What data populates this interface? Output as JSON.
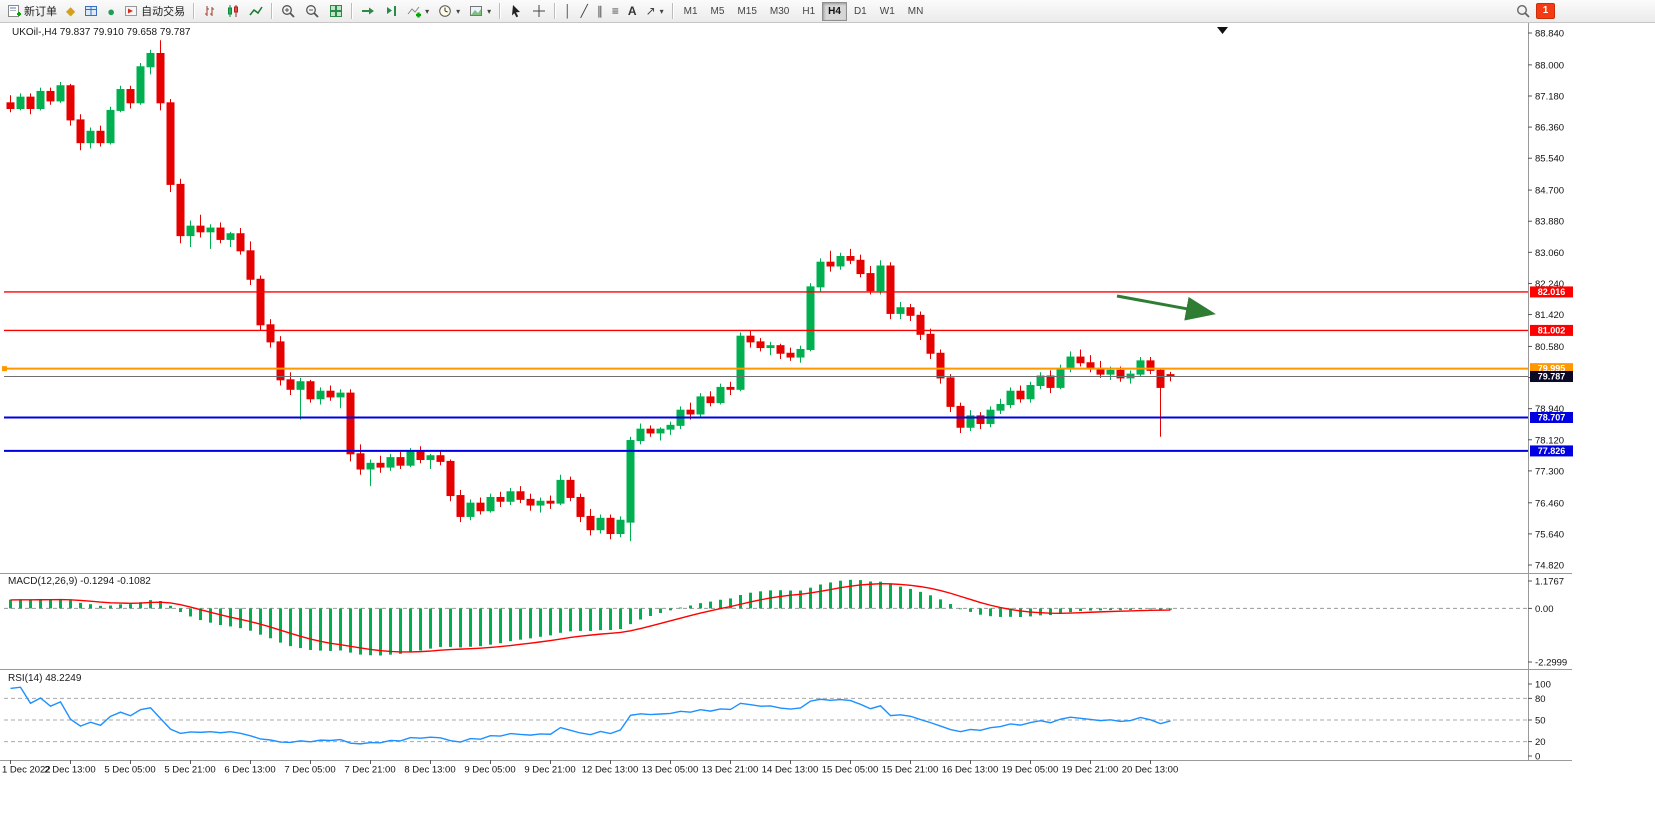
{
  "app": {
    "badge_count": "1"
  },
  "toolbar": {
    "new_order_label": "新订单",
    "auto_trading_label": "自动交易",
    "timeframes": [
      "M1",
      "M5",
      "M15",
      "M30",
      "H1",
      "H4",
      "D1",
      "W1",
      "MN"
    ],
    "active_timeframe": "H4",
    "icon_glyphs": {
      "marketwatch-icon": "◆",
      "navigator-icon": "●",
      "vertical-line-icon": "│",
      "trendline-icon": "╱",
      "channel-icon": "∥",
      "fibonacci-icon": "≡",
      "text-tool-icon": "A",
      "arrows-icon": "↗",
      "dropdown-caret-icon": "▾"
    }
  },
  "chart": {
    "title": "UKOil-,H4 79.837 79.910 79.658 79.787"
  },
  "macd": {
    "label": "MACD(12,26,9) -0.1294 -0.1082",
    "axis_ticks": [
      "1.1767",
      "0.00",
      "-2.2999"
    ]
  },
  "rsi": {
    "label": "RSI(14) 48.2249",
    "axis_ticks": [
      "100",
      "80",
      "50",
      "20",
      "0"
    ],
    "levels": [
      80,
      50,
      20
    ]
  },
  "colors": {
    "bull": "#00b050",
    "bear": "#e60000",
    "macd_hist": "#00b050",
    "macd_signal": "#ff0000",
    "rsi_line": "#1e90ff",
    "bid_line": "#6f6f6f",
    "current_tag_bg": "#0a0a28",
    "arrow": "#2e7d32",
    "axis_text": "#111111",
    "badge_bg": "#f43b12"
  },
  "chart_data": {
    "type": "candlestick",
    "symbol": "UKOil-",
    "timeframe": "H4",
    "y_range": [
      74.82,
      88.84
    ],
    "y_axis_ticks": [
      "88.840",
      "88.000",
      "87.180",
      "86.360",
      "85.540",
      "84.700",
      "83.880",
      "83.060",
      "82.240",
      "81.420",
      "80.580",
      "79.760",
      "78.940",
      "78.120",
      "77.300",
      "76.460",
      "75.640",
      "74.820"
    ],
    "x_axis_ticks": [
      "1 Dec 2022",
      "2 Dec 13:00",
      "5 Dec 05:00",
      "5 Dec 21:00",
      "6 Dec 13:00",
      "7 Dec 05:00",
      "7 Dec 21:00",
      "8 Dec 13:00",
      "9 Dec 05:00",
      "9 Dec 21:00",
      "12 Dec 13:00",
      "13 Dec 05:00",
      "13 Dec 21:00",
      "14 Dec 13:00",
      "15 Dec 05:00",
      "15 Dec 21:00",
      "16 Dec 13:00",
      "19 Dec 05:00",
      "19 Dec 21:00",
      "20 Dec 13:00"
    ],
    "price_lines": [
      {
        "price": 82.016,
        "label": "82.016",
        "color": "#ff0000",
        "width": 1.3
      },
      {
        "price": 81.002,
        "label": "81.002",
        "color": "#ff0000",
        "width": 1.3
      },
      {
        "price": 79.995,
        "label": "79.995",
        "color": "#ff9800",
        "width": 2,
        "anchor": true
      },
      {
        "price": 78.707,
        "label": "78.707",
        "color": "#0000e0",
        "width": 2
      },
      {
        "price": 77.826,
        "label": "77.826",
        "color": "#0000e0",
        "width": 2
      }
    ],
    "current_price": {
      "value": 79.787,
      "label": "79.787"
    },
    "arrow_annotation": {
      "from_index": 110.7,
      "from_price": 81.91,
      "to_index": 120.0,
      "to_price": 81.46
    },
    "candles": [
      [
        87.0,
        87.2,
        86.75,
        86.85
      ],
      [
        86.85,
        87.25,
        86.8,
        87.15
      ],
      [
        87.15,
        87.25,
        86.7,
        86.85
      ],
      [
        86.85,
        87.4,
        86.8,
        87.3
      ],
      [
        87.3,
        87.4,
        86.95,
        87.05
      ],
      [
        87.05,
        87.55,
        87.0,
        87.45
      ],
      [
        87.45,
        87.5,
        86.4,
        86.55
      ],
      [
        86.55,
        86.7,
        85.75,
        85.95
      ],
      [
        85.95,
        86.35,
        85.8,
        86.25
      ],
      [
        86.25,
        86.4,
        85.85,
        85.95
      ],
      [
        85.95,
        86.9,
        85.9,
        86.8
      ],
      [
        86.8,
        87.45,
        86.75,
        87.35
      ],
      [
        87.35,
        87.45,
        86.85,
        87.0
      ],
      [
        87.0,
        88.05,
        86.95,
        87.95
      ],
      [
        87.95,
        88.4,
        87.75,
        88.3
      ],
      [
        88.3,
        88.65,
        86.8,
        87.0
      ],
      [
        87.0,
        87.1,
        84.65,
        84.85
      ],
      [
        84.85,
        85.0,
        83.3,
        83.5
      ],
      [
        83.5,
        83.9,
        83.2,
        83.75
      ],
      [
        83.75,
        84.05,
        83.45,
        83.6
      ],
      [
        83.6,
        83.8,
        83.15,
        83.7
      ],
      [
        83.7,
        83.85,
        83.3,
        83.4
      ],
      [
        83.4,
        83.6,
        83.2,
        83.55
      ],
      [
        83.55,
        83.7,
        83.0,
        83.1
      ],
      [
        83.1,
        83.35,
        82.2,
        82.35
      ],
      [
        82.35,
        82.45,
        81.0,
        81.15
      ],
      [
        81.15,
        81.3,
        80.55,
        80.7
      ],
      [
        80.7,
        80.85,
        79.55,
        79.7
      ],
      [
        79.7,
        79.9,
        79.3,
        79.45
      ],
      [
        79.45,
        79.75,
        78.65,
        79.65
      ],
      [
        79.65,
        79.7,
        79.1,
        79.2
      ],
      [
        79.2,
        79.5,
        79.05,
        79.4
      ],
      [
        79.4,
        79.55,
        79.15,
        79.25
      ],
      [
        79.25,
        79.45,
        78.95,
        79.35
      ],
      [
        79.35,
        79.45,
        77.55,
        77.75
      ],
      [
        77.75,
        78.0,
        77.2,
        77.35
      ],
      [
        77.35,
        77.6,
        76.9,
        77.5
      ],
      [
        77.5,
        77.7,
        77.25,
        77.4
      ],
      [
        77.4,
        77.75,
        77.3,
        77.65
      ],
      [
        77.65,
        77.8,
        77.35,
        77.45
      ],
      [
        77.45,
        77.9,
        77.4,
        77.8
      ],
      [
        77.8,
        77.95,
        77.5,
        77.6
      ],
      [
        77.6,
        77.75,
        77.35,
        77.7
      ],
      [
        77.7,
        77.85,
        77.45,
        77.55
      ],
      [
        77.55,
        77.6,
        76.5,
        76.65
      ],
      [
        76.65,
        76.8,
        75.95,
        76.1
      ],
      [
        76.1,
        76.55,
        76.0,
        76.45
      ],
      [
        76.45,
        76.6,
        76.15,
        76.25
      ],
      [
        76.25,
        76.7,
        76.2,
        76.6
      ],
      [
        76.6,
        76.75,
        76.35,
        76.5
      ],
      [
        76.5,
        76.85,
        76.4,
        76.75
      ],
      [
        76.75,
        76.9,
        76.45,
        76.55
      ],
      [
        76.55,
        76.7,
        76.25,
        76.4
      ],
      [
        76.4,
        76.6,
        76.2,
        76.5
      ],
      [
        76.5,
        76.65,
        76.3,
        76.45
      ],
      [
        76.45,
        77.2,
        76.4,
        77.05
      ],
      [
        77.05,
        77.15,
        76.5,
        76.6
      ],
      [
        76.6,
        76.7,
        75.95,
        76.1
      ],
      [
        76.1,
        76.3,
        75.6,
        75.75
      ],
      [
        75.75,
        76.15,
        75.65,
        76.05
      ],
      [
        76.05,
        76.15,
        75.5,
        75.65
      ],
      [
        75.65,
        76.1,
        75.55,
        76.0
      ],
      [
        75.95,
        78.2,
        75.45,
        78.1
      ],
      [
        78.1,
        78.55,
        78.0,
        78.4
      ],
      [
        78.4,
        78.5,
        78.2,
        78.3
      ],
      [
        78.3,
        78.45,
        78.1,
        78.4
      ],
      [
        78.4,
        78.6,
        78.25,
        78.5
      ],
      [
        78.5,
        79.0,
        78.4,
        78.9
      ],
      [
        78.9,
        79.1,
        78.65,
        78.8
      ],
      [
        78.8,
        79.35,
        78.7,
        79.25
      ],
      [
        79.25,
        79.4,
        79.0,
        79.1
      ],
      [
        79.1,
        79.6,
        79.05,
        79.5
      ],
      [
        79.5,
        79.65,
        79.3,
        79.45
      ],
      [
        79.45,
        80.95,
        79.4,
        80.85
      ],
      [
        80.85,
        81.0,
        80.55,
        80.7
      ],
      [
        80.7,
        80.8,
        80.45,
        80.55
      ],
      [
        80.55,
        80.7,
        80.35,
        80.6
      ],
      [
        80.6,
        80.65,
        80.25,
        80.4
      ],
      [
        80.4,
        80.55,
        80.2,
        80.3
      ],
      [
        80.3,
        80.6,
        80.15,
        80.5
      ],
      [
        80.5,
        82.25,
        80.45,
        82.15
      ],
      [
        82.15,
        82.9,
        82.0,
        82.8
      ],
      [
        82.8,
        83.1,
        82.55,
        82.7
      ],
      [
        82.7,
        83.05,
        82.6,
        82.95
      ],
      [
        82.95,
        83.15,
        82.75,
        82.85
      ],
      [
        82.85,
        83.0,
        82.4,
        82.5
      ],
      [
        82.5,
        82.7,
        81.95,
        82.05
      ],
      [
        82.05,
        82.85,
        81.95,
        82.7
      ],
      [
        82.7,
        82.8,
        81.3,
        81.45
      ],
      [
        81.45,
        81.75,
        81.3,
        81.6
      ],
      [
        81.6,
        81.7,
        81.25,
        81.4
      ],
      [
        81.4,
        81.5,
        80.75,
        80.9
      ],
      [
        80.9,
        81.05,
        80.25,
        80.4
      ],
      [
        80.4,
        80.5,
        79.6,
        79.75
      ],
      [
        79.75,
        79.85,
        78.85,
        79.0
      ],
      [
        79.0,
        79.1,
        78.3,
        78.45
      ],
      [
        78.45,
        78.9,
        78.35,
        78.75
      ],
      [
        78.75,
        78.85,
        78.4,
        78.55
      ],
      [
        78.55,
        79.0,
        78.45,
        78.9
      ],
      [
        78.9,
        79.2,
        78.8,
        79.05
      ],
      [
        79.05,
        79.5,
        78.95,
        79.4
      ],
      [
        79.4,
        79.55,
        79.1,
        79.2
      ],
      [
        79.2,
        79.65,
        79.1,
        79.55
      ],
      [
        79.55,
        79.9,
        79.45,
        79.8
      ],
      [
        79.8,
        79.95,
        79.35,
        79.5
      ],
      [
        79.5,
        80.1,
        79.45,
        80.0
      ],
      [
        80.0,
        80.45,
        79.9,
        80.3
      ],
      [
        80.3,
        80.5,
        80.05,
        80.15
      ],
      [
        80.15,
        80.35,
        79.9,
        80.0
      ],
      [
        80.0,
        80.2,
        79.75,
        79.85
      ],
      [
        79.85,
        80.05,
        79.7,
        79.95
      ],
      [
        79.95,
        80.05,
        79.65,
        79.75
      ],
      [
        79.75,
        79.95,
        79.6,
        79.85
      ],
      [
        79.85,
        80.3,
        79.8,
        80.2
      ],
      [
        80.2,
        80.3,
        79.85,
        79.95
      ],
      [
        79.95,
        80.0,
        78.2,
        79.5
      ],
      [
        79.837,
        79.91,
        79.658,
        79.787
      ]
    ]
  }
}
